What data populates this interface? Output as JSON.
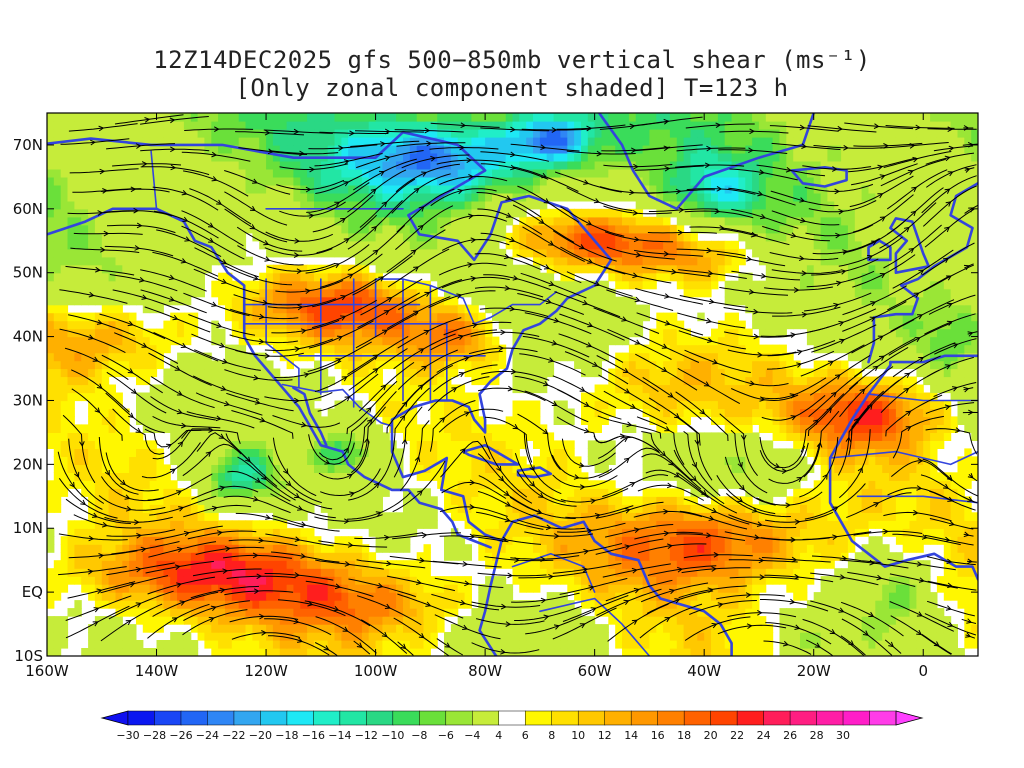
{
  "title": {
    "line1": "12Z14DEC2025 gfs 500−850mb vertical shear (ms⁻¹)",
    "line2": "[Only zonal component shaded] T=123 h"
  },
  "map": {
    "lon_range": [
      -160,
      10
    ],
    "lat_range": [
      -10,
      75
    ],
    "xticks": [
      {
        "value": -160,
        "label": "160W"
      },
      {
        "value": -140,
        "label": "140W"
      },
      {
        "value": -120,
        "label": "120W"
      },
      {
        "value": -100,
        "label": "100W"
      },
      {
        "value": -80,
        "label": "80W"
      },
      {
        "value": -60,
        "label": "60W"
      },
      {
        "value": -40,
        "label": "40W"
      },
      {
        "value": -20,
        "label": "20W"
      },
      {
        "value": 0,
        "label": "0"
      }
    ],
    "yticks": [
      {
        "value": -10,
        "label": "10S"
      },
      {
        "value": 0,
        "label": "EQ"
      },
      {
        "value": 10,
        "label": "10N"
      },
      {
        "value": 20,
        "label": "20N"
      },
      {
        "value": 30,
        "label": "30N"
      },
      {
        "value": 40,
        "label": "40N"
      },
      {
        "value": 50,
        "label": "50N"
      },
      {
        "value": 60,
        "label": "60N"
      },
      {
        "value": 70,
        "label": "70N"
      }
    ],
    "coastline_color": "#3344dd",
    "streamline_color": "#000000"
  },
  "colorbar": {
    "levels": [
      -30,
      -28,
      -26,
      -24,
      -22,
      -20,
      -18,
      -16,
      -14,
      -12,
      -10,
      -8,
      -6,
      -4,
      4,
      6,
      8,
      10,
      12,
      14,
      16,
      18,
      20,
      22,
      24,
      26,
      28,
      30
    ],
    "colors": [
      "#0a17f0",
      "#1a46f5",
      "#2266f5",
      "#2f86f5",
      "#33a6f0",
      "#22c8f0",
      "#1ee8f5",
      "#20eec8",
      "#22e6a4",
      "#2ad884",
      "#3adc5a",
      "#6ae03a",
      "#9ae636",
      "#c6ec3a",
      "#ffffff",
      "#fff700",
      "#ffe000",
      "#ffc800",
      "#ffb000",
      "#ff9800",
      "#ff8000",
      "#ff6200",
      "#ff4400",
      "#ff1e1e",
      "#ff1e5a",
      "#ff1e82",
      "#ff1ea6",
      "#ff1ec8",
      "#ff3ce8"
    ],
    "low_end_color": "#1010f0",
    "high_end_color": "#ff40ff"
  },
  "chart_data": {
    "type": "heatmap",
    "title": "12Z14DEC2025 gfs 500−850mb vertical shear (ms⁻¹)",
    "subtitle": "[Only zonal component shaded] T=123 h",
    "variable": "zonal component of 500−850mb vertical shear (ms⁻¹)",
    "x_range": [
      -160,
      10
    ],
    "y_range": [
      -10,
      75
    ],
    "blobs": [
      {
        "lon": -105,
        "lat": 45,
        "sx": 18,
        "sy": 6,
        "amp": 18
      },
      {
        "lon": -85,
        "lat": 40,
        "sx": 10,
        "sy": 5,
        "amp": 14
      },
      {
        "lon": -150,
        "lat": 40,
        "sx": 20,
        "sy": 7,
        "amp": 14
      },
      {
        "lon": -60,
        "lat": 55,
        "sx": 20,
        "sy": 5,
        "amp": 18
      },
      {
        "lon": -38,
        "lat": 52,
        "sx": 14,
        "sy": 4,
        "amp": 8
      },
      {
        "lon": -50,
        "lat": 32,
        "sx": 20,
        "sy": 8,
        "amp": 10
      },
      {
        "lon": -10,
        "lat": 28,
        "sx": 14,
        "sy": 6,
        "amp": 16
      },
      {
        "lon": -130,
        "lat": 3,
        "sx": 28,
        "sy": 6,
        "amp": 14
      },
      {
        "lon": -38,
        "lat": 8,
        "sx": 20,
        "sy": 7,
        "amp": 16
      },
      {
        "lon": -100,
        "lat": -2,
        "sx": 18,
        "sy": 5,
        "amp": 10
      },
      {
        "lon": -125,
        "lat": 18,
        "sx": 8,
        "sy": 5,
        "amp": -16
      },
      {
        "lon": -105,
        "lat": 22,
        "sx": 6,
        "sy": 4,
        "amp": -12
      },
      {
        "lon": -88,
        "lat": 68,
        "sx": 18,
        "sy": 6,
        "amp": -20
      },
      {
        "lon": -68,
        "lat": 71,
        "sx": 8,
        "sy": 4,
        "amp": -18
      },
      {
        "lon": -38,
        "lat": 63,
        "sx": 8,
        "sy": 5,
        "amp": -10
      },
      {
        "lon": -5,
        "lat": 0,
        "sx": 8,
        "sy": 8,
        "amp": -10
      },
      {
        "lon": -20,
        "lat": -8,
        "sx": 8,
        "sy": 4,
        "amp": -8
      },
      {
        "lon": -70,
        "lat": -5,
        "sx": 14,
        "sy": 6,
        "amp": -5
      },
      {
        "lon": 5,
        "lat": 40,
        "sx": 6,
        "sy": 6,
        "amp": -6
      },
      {
        "lon": -30,
        "lat": 20,
        "sx": 10,
        "sy": 5,
        "amp": -8
      }
    ],
    "background_shear": 6,
    "streamlines": "wind-shear flow lines with arrowheads"
  }
}
